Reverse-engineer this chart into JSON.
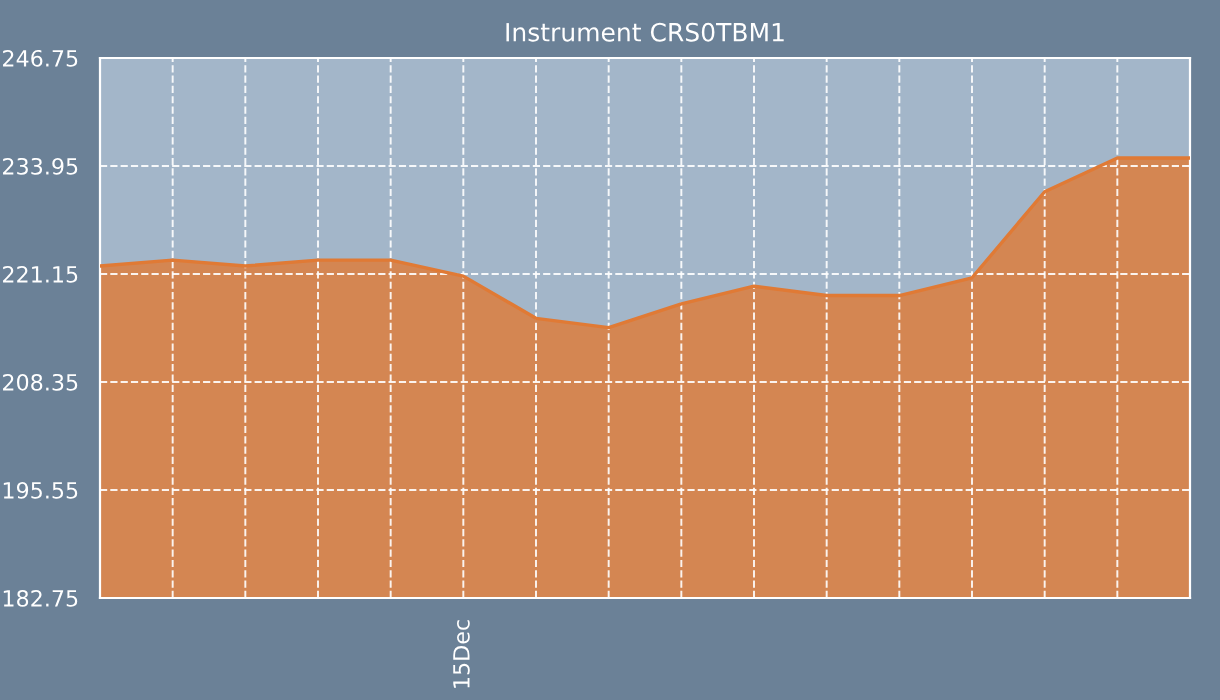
{
  "chart_data": {
    "type": "area",
    "title": "Instrument CRS0TBM1",
    "categories": [
      null,
      null,
      null,
      null,
      null,
      "15Dec",
      null,
      null,
      null,
      null,
      null,
      null,
      null,
      null,
      null,
      null
    ],
    "series": [
      {
        "color": "#e07a35",
        "values": [
          222.1,
          222.8,
          222.1,
          222.8,
          222.8,
          220.9,
          215.9,
          214.8,
          217.6,
          219.7,
          218.6,
          218.6,
          220.7,
          230.9,
          234.9,
          234.9
        ]
      }
    ],
    "ylim": [
      182.75,
      246.75
    ],
    "yticks": [
      {
        "value": 182.75,
        "label": "182.75"
      },
      {
        "value": 195.55,
        "label": "195.55"
      },
      {
        "value": 208.35,
        "label": "208.35"
      },
      {
        "value": 221.15,
        "label": "221.15"
      },
      {
        "value": 233.95,
        "label": "233.95"
      },
      {
        "value": 246.75,
        "label": "246.75"
      }
    ],
    "grid": true
  }
}
